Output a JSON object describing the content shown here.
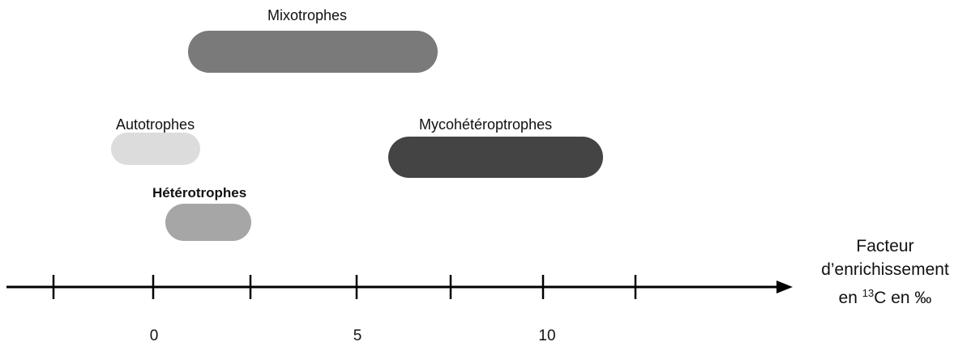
{
  "groups": [
    {
      "label": "Mixotrophes",
      "color": "#7a7a7a",
      "bold": false
    },
    {
      "label": "Autotrophes",
      "color": "#dcdcdc",
      "bold": false
    },
    {
      "label": "Mycohétéroptrophes",
      "color": "#444444",
      "bold": false
    },
    {
      "label": "Hétérotrophes",
      "color": "#a6a6a6",
      "bold": true
    }
  ],
  "axis": {
    "tick_labels": [
      "0",
      "5",
      "10"
    ],
    "title_line1": "Facteur",
    "title_line2": "d’enrichissement",
    "title_line3_prefix": "en ",
    "title_line3_sup": "13",
    "title_line3_suffix": "C en ‰"
  }
}
